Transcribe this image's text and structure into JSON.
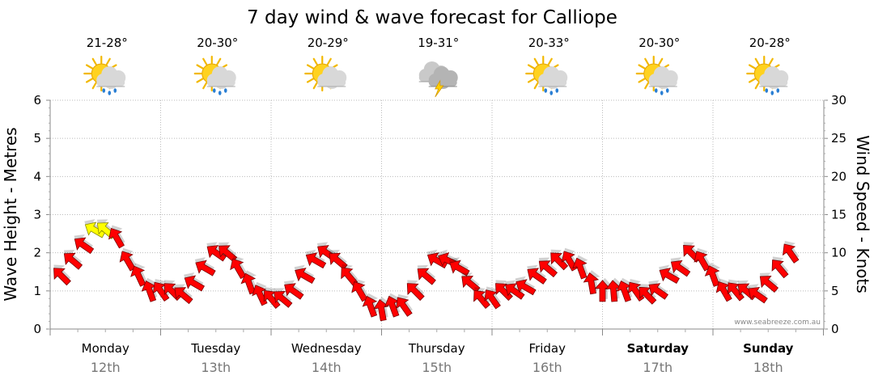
{
  "chart_data": {
    "type": "line",
    "title": "7 day wind & wave forecast for Calliope",
    "ylabel_left": "Wave Height - Metres",
    "ylabel_right": "Wind Speed - Knots",
    "y_left_range": [
      0,
      6
    ],
    "y_left_ticks": [
      "0",
      "1",
      "2",
      "3",
      "4",
      "5",
      "6"
    ],
    "y_right_range": [
      0,
      30
    ],
    "y_right_ticks": [
      "0",
      "5",
      "10",
      "15",
      "20",
      "25",
      "30"
    ],
    "credit": "www.seabreeze.com.au",
    "days": [
      {
        "day": "Monday",
        "date": "12th",
        "temp": "21-28°",
        "icon": "sun-cloud-rain-icon",
        "bold": false
      },
      {
        "day": "Tuesday",
        "date": "13th",
        "temp": "20-30°",
        "icon": "sun-cloud-rain-icon",
        "bold": false
      },
      {
        "day": "Wednesday",
        "date": "14th",
        "temp": "20-29°",
        "icon": "sun-cloud-icon",
        "bold": false
      },
      {
        "day": "Thursday",
        "date": "15th",
        "temp": "19-31°",
        "icon": "storm-cloud-icon",
        "bold": false
      },
      {
        "day": "Friday",
        "date": "16th",
        "temp": "20-33°",
        "icon": "sun-cloud-rain-icon",
        "bold": false
      },
      {
        "day": "Saturday",
        "date": "17th",
        "temp": "20-30°",
        "icon": "sun-cloud-rain-icon",
        "bold": true
      },
      {
        "day": "Sunday",
        "date": "18th",
        "temp": "20-28°",
        "icon": "sun-cloud-rain-icon",
        "bold": true
      }
    ],
    "series": [
      {
        "name": "Wind speed (knots)",
        "color": "#ff0000",
        "highlight_color": "#ffff00",
        "highlight_above": 12.5,
        "x_days": [
          0.1,
          0.2,
          0.3,
          0.4,
          0.5,
          0.6,
          0.7,
          0.8,
          0.9,
          1.0,
          1.1,
          1.2,
          1.3,
          1.4,
          1.5,
          1.6,
          1.7,
          1.8,
          1.9,
          2.0,
          2.1,
          2.2,
          2.3,
          2.4,
          2.5,
          2.6,
          2.7,
          2.8,
          2.9,
          3.0,
          3.1,
          3.2,
          3.3,
          3.4,
          3.5,
          3.6,
          3.7,
          3.8,
          3.9,
          4.0,
          4.1,
          4.2,
          4.3,
          4.4,
          4.5,
          4.6,
          4.7,
          4.8,
          4.9,
          5.0,
          5.1,
          5.2,
          5.3,
          5.4,
          5.5,
          5.6,
          5.7,
          5.8,
          5.9,
          6.0,
          6.1,
          6.2,
          6.3,
          6.4,
          6.5,
          6.6,
          6.7
        ],
        "values": [
          7,
          9,
          11,
          13,
          13,
          12,
          9,
          7,
          5,
          5,
          5,
          4.5,
          6,
          8,
          10,
          10,
          8,
          6,
          4.5,
          4,
          4,
          5,
          7,
          9,
          10,
          9,
          7,
          5,
          3,
          2.5,
          3,
          3,
          5,
          7,
          9,
          9,
          8,
          6,
          4,
          4,
          5,
          5,
          5.5,
          7,
          8,
          9,
          9,
          8,
          6,
          5,
          5,
          5,
          5,
          4.5,
          5,
          7,
          8,
          10,
          9,
          7,
          5,
          5,
          5,
          4.5,
          6,
          8,
          10
        ],
        "angles_deg": [
          135,
          140,
          145,
          150,
          140,
          120,
          120,
          115,
          110,
          125,
          135,
          140,
          150,
          150,
          145,
          140,
          120,
          110,
          115,
          130,
          140,
          145,
          150,
          150,
          145,
          140,
          130,
          120,
          110,
          100,
          110,
          125,
          135,
          140,
          150,
          155,
          150,
          140,
          130,
          125,
          135,
          145,
          150,
          145,
          140,
          135,
          120,
          110,
          100,
          90,
          95,
          110,
          125,
          135,
          145,
          150,
          145,
          135,
          120,
          110,
          120,
          130,
          140,
          145,
          140,
          130,
          125
        ]
      }
    ]
  }
}
